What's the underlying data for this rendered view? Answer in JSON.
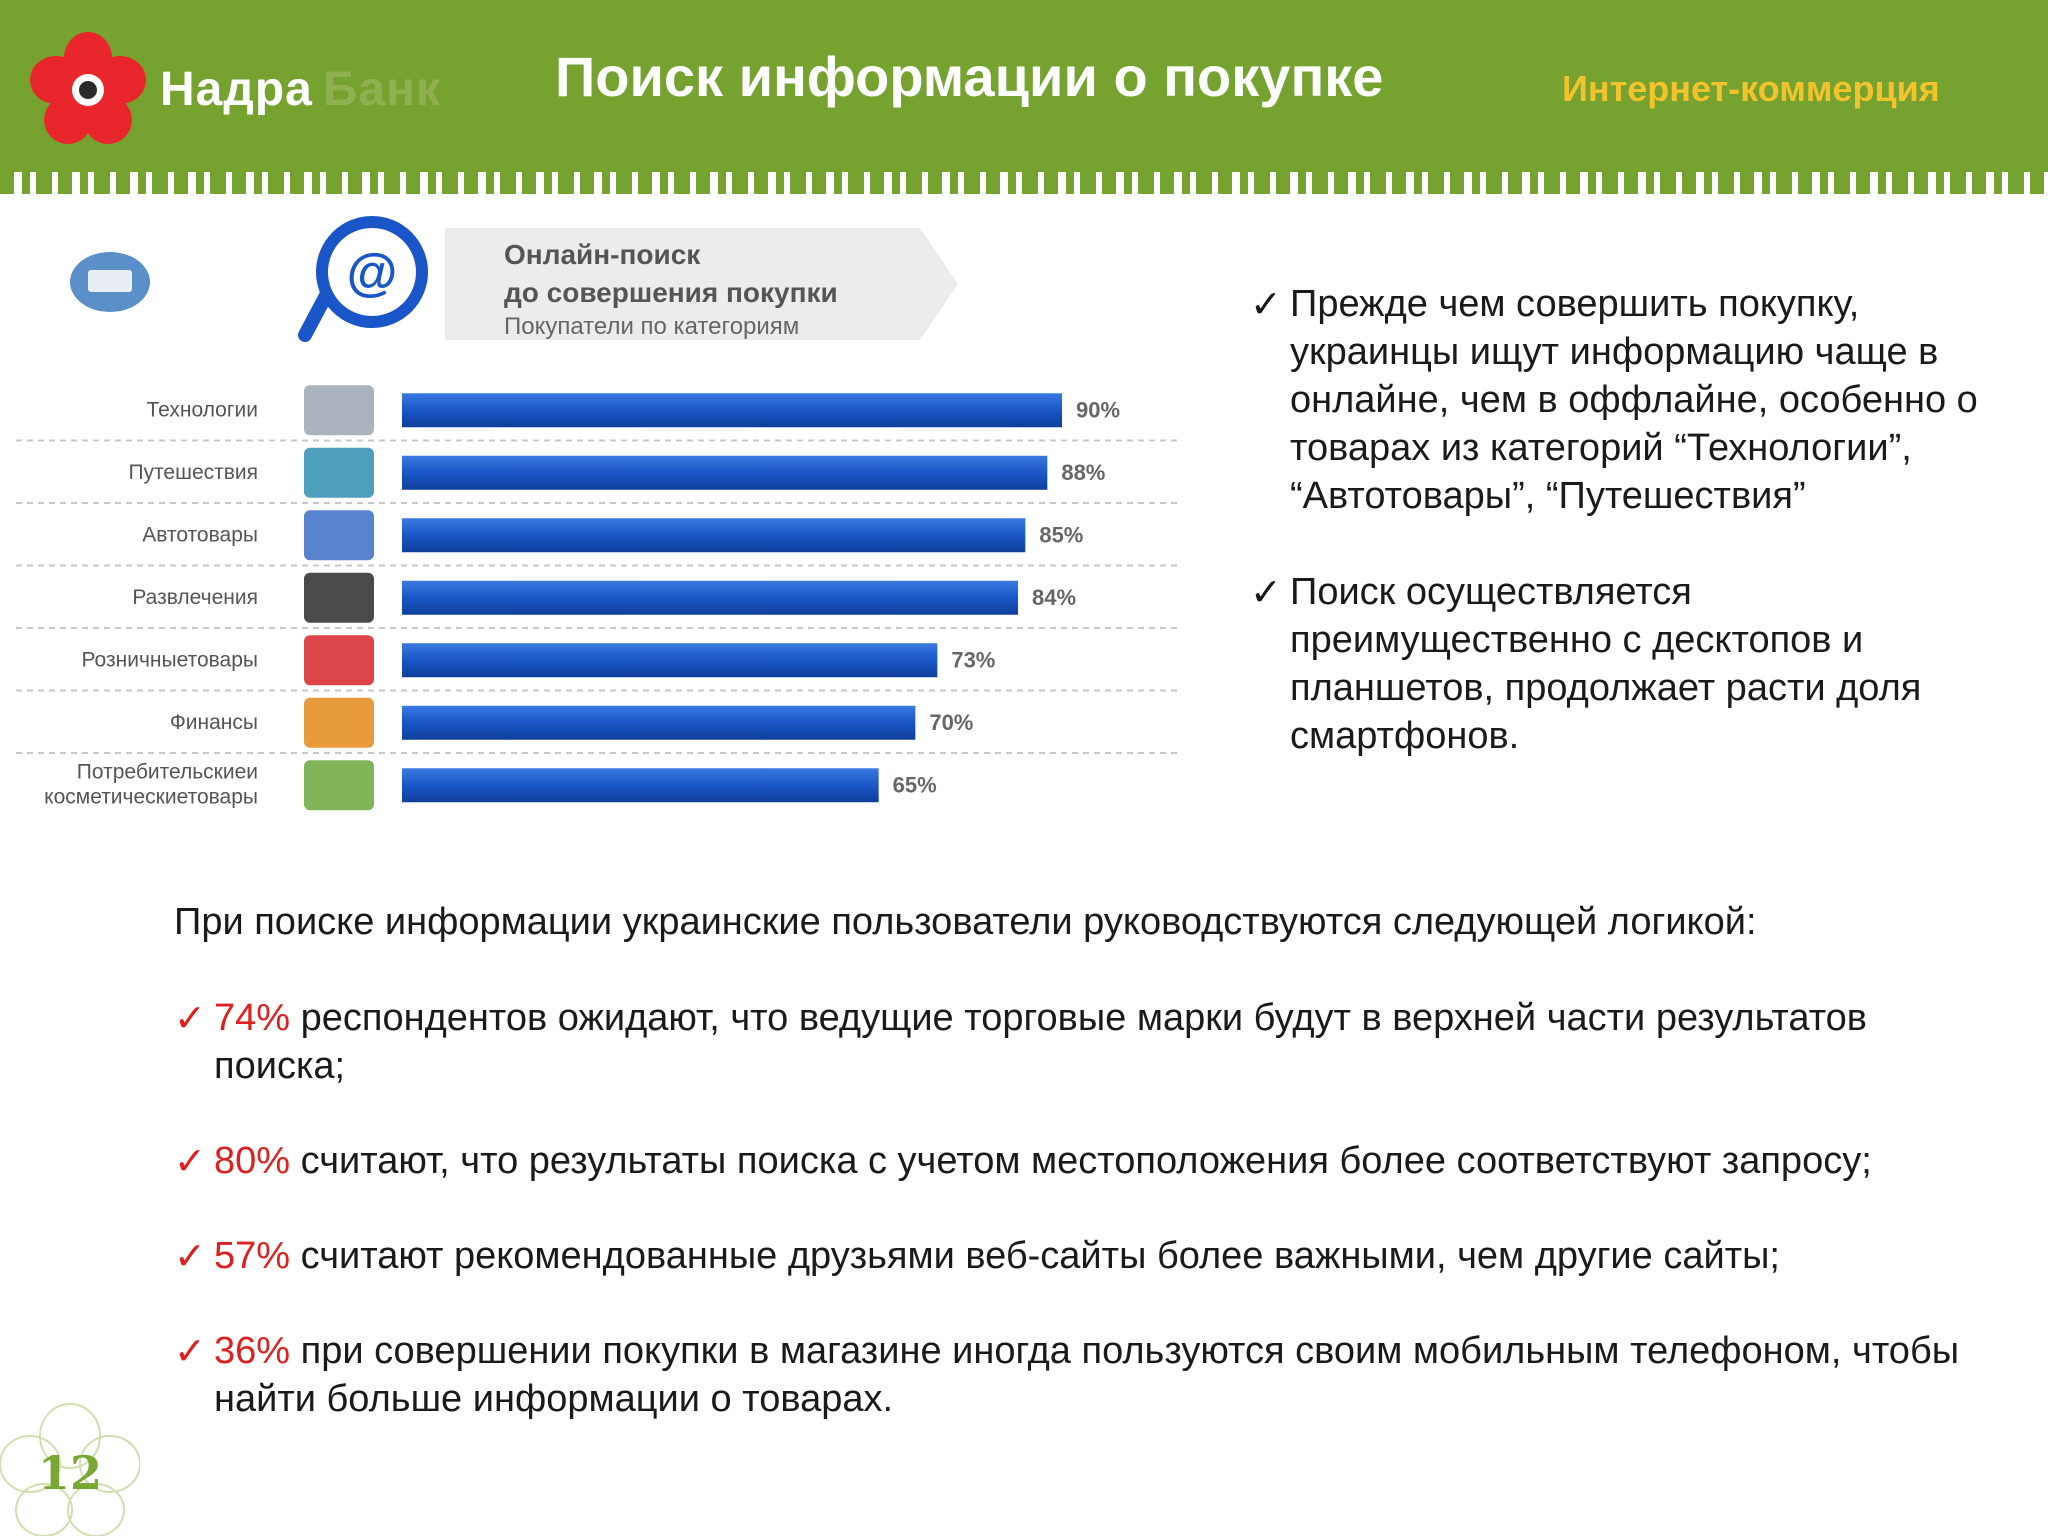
{
  "header": {
    "logo_name": "Надра",
    "logo_bank": "Банк",
    "title": "Поиск информации о покупке",
    "section": "Интернет-коммерция",
    "colors": {
      "bar": "#76a22f",
      "accent": "#f2c32c",
      "logo": "#e8262b"
    }
  },
  "chart_data": {
    "type": "bar",
    "orientation": "horizontal",
    "title": "Онлайн-поиск",
    "title_line2": "до совершения покупки",
    "subtitle": "Покупатели по категориям",
    "categories": [
      "Технологии",
      "Путешествия",
      "Автотовары",
      "Развлечения",
      "Розничныетовары",
      "Финансы",
      [
        "Потребительскиеи",
        "косметическиетовары"
      ]
    ],
    "values": [
      90,
      88,
      85,
      84,
      73,
      70,
      65
    ],
    "value_labels": [
      "90%",
      "88%",
      "85%",
      "84%",
      "73%",
      "70%",
      "65%"
    ],
    "icons": [
      "computer-icon",
      "beach-icon",
      "cars-icon",
      "cinema-icon",
      "shopping-cart-icon",
      "money-icon",
      "grocery-basket-icon"
    ],
    "xlim": [
      0,
      100
    ],
    "bar_color": "#1a56c8",
    "grid": false
  },
  "right_bullets": [
    "Прежде чем совершить покупку, украинцы ищут информацию чаще в онлайне, чем в оффлайне, особенно о товарах из категорий “Технологии”, “Автотовары”, “Путешествия”",
    "Поиск осуществляется преимущественно с десктопов и планшетов, продолжает расти доля смартфонов."
  ],
  "check_mark": "✓",
  "bottom": {
    "intro": "При поиске информации украинские пользователи руководствуются следующей логикой:",
    "items": [
      {
        "pct": "74%",
        "text": " респондентов ожидают, что ведущие торговые марки будут в верхней части результатов поиска;"
      },
      {
        "pct": "80%",
        "text": " считают, что результаты поиска с учетом местоположения более соответствуют запросу;"
      },
      {
        "pct": "57%",
        "text": " считают рекомендованные друзьями веб-сайты более важными, чем другие сайты;"
      },
      {
        "pct": "36%",
        "text": " при совершении покупки в магазине иногда пользуются своим мобильным телефоном, чтобы найти больше информации о товарах."
      }
    ]
  },
  "page_number": "12"
}
